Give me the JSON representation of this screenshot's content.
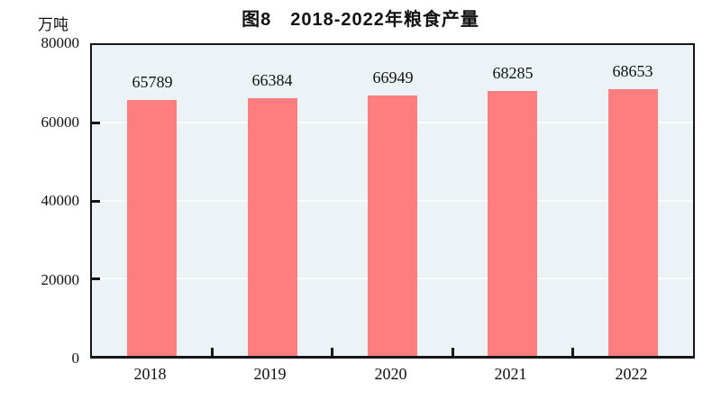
{
  "figure": {
    "title": "图8　2018-2022年粮食产量",
    "unit_label": "万吨"
  },
  "chart_data": {
    "type": "bar",
    "title": "图8 2018-2022年粮食产量",
    "categories": [
      "2018",
      "2019",
      "2020",
      "2021",
      "2022"
    ],
    "values": [
      65789,
      66384,
      66949,
      68285,
      68653
    ],
    "xlabel": "",
    "ylabel": "万吨",
    "ylim": [
      0,
      80000
    ],
    "yticks": [
      0,
      20000,
      40000,
      60000,
      80000
    ],
    "gridline_values": [
      20000,
      40000,
      60000
    ],
    "grid": true,
    "legend": "none",
    "bar_color": "#fc7e7e",
    "plot_background": "#ecf3f7",
    "axis_color": "#161616"
  }
}
